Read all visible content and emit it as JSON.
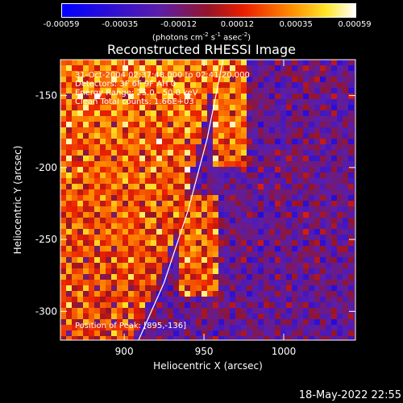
{
  "chart_data": {
    "type": "heatmap",
    "title": "Reconstructed RHESSI Image",
    "xlabel": "Heliocentric X (arcsec)",
    "ylabel": "Heliocentric Y (arcsec)",
    "xlim": [
      860,
      1045
    ],
    "ylim": [
      -320,
      -125
    ],
    "x_ticks": [
      "900",
      "950",
      "1000"
    ],
    "x_tick_values": [
      900,
      950,
      1000
    ],
    "y_ticks": [
      "-150",
      "-200",
      "-250",
      "-300"
    ],
    "y_tick_values": [
      -150,
      -200,
      -250,
      -300
    ],
    "colorbar": {
      "ticks": [
        "-0.00059",
        "-0.00035",
        "-0.00012",
        "0.00012",
        "0.00035",
        "0.00059"
      ],
      "unit_prefix": "(photons cm",
      "unit_sup1": "-2",
      "unit_mid1": " s",
      "unit_sup2": "-1",
      "unit_mid2": " asec",
      "unit_sup3": "-2",
      "unit_suffix": ")"
    },
    "annotations": [
      "31-Oct-2004 02:37:48.000 to 02:41:20.000",
      "Detectors: 3F 6F 9F AH 0",
      "Energy Range: 25.0 - 50.0 keV",
      "Clean    Total counts: 1.66E+03"
    ],
    "peak_label": "Position of Peak: [895,-136]",
    "limb": [
      [
        909,
        -320
      ],
      [
        925,
        -280
      ],
      [
        940,
        -230
      ],
      [
        952,
        -180
      ],
      [
        962,
        -125
      ]
    ]
  },
  "date_stamp": "18-May-2022 22:55"
}
